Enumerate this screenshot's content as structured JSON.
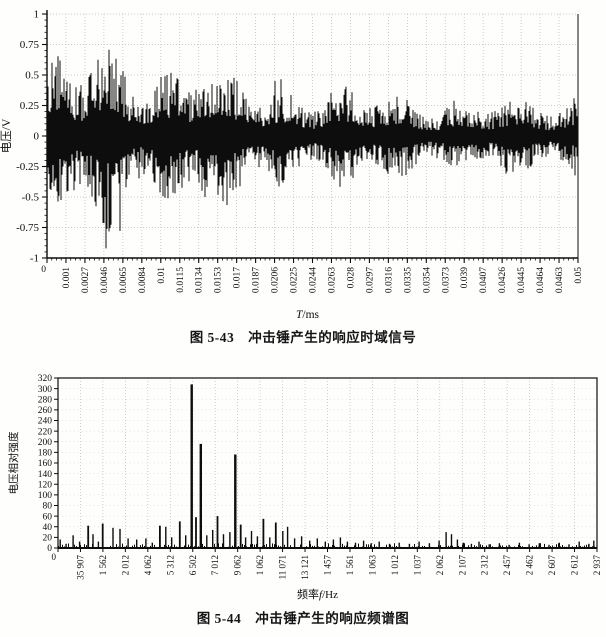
{
  "page_background": "#fefefd",
  "ink_color": "#0d0d0d",
  "grid_color": "#b9b9b9",
  "chart_data": [
    {
      "type": "line",
      "subtype": "noise-waveform",
      "title": "图 5-43　冲击锤产生的响应时域信号",
      "xlabel": "T/ms",
      "xlabel_parts": [
        {
          "t": "T",
          "i": true
        },
        {
          "t": "/ms",
          "i": false
        }
      ],
      "ylabel": "电压/V",
      "ylim": [
        -1,
        1
      ],
      "y_tick_labels": [
        "1",
        "0.75",
        "0.5",
        "0.25",
        "0",
        "-0.25",
        "-0.5",
        "-0.75",
        "-1"
      ],
      "x_tick_labels": [
        "0",
        "0.001",
        "0.0027",
        "0.0046",
        "0.0065",
        "0.0084",
        "0.01",
        "0.0115",
        "0.0134",
        "0.0153",
        "0.017",
        "0.0187",
        "0.0206",
        "0.0225",
        "0.0244",
        "0.0263",
        "0.028",
        "0.0297",
        "0.0316",
        "0.0335",
        "0.0354",
        "0.0373",
        "0.039",
        "0.0407",
        "0.0426",
        "0.0445",
        "0.0464",
        "0.0463",
        "0.05"
      ],
      "grid": true,
      "legend": null,
      "envelope_keypoints": [
        [
          0,
          0.58
        ],
        [
          0.03,
          0.7
        ],
        [
          0.06,
          0.62
        ],
        [
          0.1,
          0.74
        ],
        [
          0.14,
          0.84
        ],
        [
          0.18,
          0.64
        ],
        [
          0.23,
          0.56
        ],
        [
          0.28,
          0.62
        ],
        [
          0.33,
          0.52
        ],
        [
          0.4,
          0.47
        ],
        [
          0.48,
          0.44
        ],
        [
          0.56,
          0.4
        ],
        [
          0.64,
          0.36
        ],
        [
          0.72,
          0.33
        ],
        [
          0.82,
          0.3
        ],
        [
          0.92,
          0.3
        ],
        [
          1,
          0.32
        ]
      ],
      "noise_seed": 987654321
    },
    {
      "type": "bar",
      "subtype": "frequency-spectrum",
      "title": "图 5-44　冲击锤产生的响应频谱图",
      "xlabel": "频率f/Hz",
      "xlabel_parts": [
        {
          "t": "频率",
          "i": false
        },
        {
          "t": "f",
          "i": true
        },
        {
          "t": "/Hz",
          "i": false
        }
      ],
      "ylabel": "电压相对强度",
      "ylim": [
        0,
        320
      ],
      "y_tick_labels": [
        "320",
        "300",
        "280",
        "260",
        "240",
        "220",
        "200",
        "180",
        "160",
        "140",
        "120",
        "100",
        "80",
        "60",
        "40",
        "20",
        "0"
      ],
      "x_tick_labels": [
        "0",
        "35 907",
        "1 562",
        "2 012",
        "4 062",
        "5 312",
        "6 502",
        "7 012",
        "9 062",
        "1 062",
        "11 071",
        "13 121",
        "1 457",
        "1 561",
        "1 063",
        "1 012",
        "1 037",
        "2 062",
        "2 107",
        "2 312",
        "2 457",
        "2 462",
        "2 607",
        "2 612",
        "2 937"
      ],
      "grid": true,
      "legend": null,
      "peaks": [
        [
          0.004,
          16
        ],
        [
          0.015,
          8
        ],
        [
          0.028,
          24
        ],
        [
          0.04,
          12
        ],
        [
          0.056,
          42
        ],
        [
          0.065,
          26
        ],
        [
          0.075,
          12
        ],
        [
          0.083,
          46
        ],
        [
          0.102,
          38
        ],
        [
          0.115,
          36
        ],
        [
          0.13,
          18
        ],
        [
          0.146,
          16
        ],
        [
          0.163,
          18
        ],
        [
          0.175,
          10
        ],
        [
          0.189,
          42
        ],
        [
          0.2,
          40
        ],
        [
          0.211,
          20
        ],
        [
          0.226,
          50
        ],
        [
          0.237,
          24
        ],
        [
          0.248,
          308
        ],
        [
          0.256,
          58
        ],
        [
          0.265,
          196
        ],
        [
          0.276,
          24
        ],
        [
          0.287,
          34
        ],
        [
          0.296,
          60
        ],
        [
          0.307,
          26
        ],
        [
          0.319,
          30
        ],
        [
          0.329,
          176
        ],
        [
          0.339,
          44
        ],
        [
          0.348,
          20
        ],
        [
          0.359,
          32
        ],
        [
          0.37,
          22
        ],
        [
          0.381,
          55
        ],
        [
          0.393,
          20
        ],
        [
          0.404,
          48
        ],
        [
          0.417,
          32
        ],
        [
          0.426,
          40
        ],
        [
          0.439,
          18
        ],
        [
          0.452,
          22
        ],
        [
          0.467,
          14
        ],
        [
          0.481,
          18
        ],
        [
          0.496,
          12
        ],
        [
          0.511,
          16
        ],
        [
          0.524,
          20
        ],
        [
          0.537,
          12
        ],
        [
          0.552,
          10
        ],
        [
          0.567,
          14
        ],
        [
          0.581,
          9
        ],
        [
          0.596,
          12
        ],
        [
          0.615,
          8
        ],
        [
          0.633,
          10
        ],
        [
          0.652,
          8
        ],
        [
          0.67,
          12
        ],
        [
          0.689,
          9
        ],
        [
          0.707,
          14
        ],
        [
          0.72,
          30
        ],
        [
          0.73,
          26
        ],
        [
          0.741,
          16
        ],
        [
          0.752,
          10
        ],
        [
          0.767,
          8
        ],
        [
          0.781,
          12
        ],
        [
          0.8,
          7
        ],
        [
          0.819,
          9
        ],
        [
          0.837,
          6
        ],
        [
          0.856,
          10
        ],
        [
          0.874,
          7
        ],
        [
          0.893,
          9
        ],
        [
          0.911,
          6
        ],
        [
          0.93,
          10
        ],
        [
          0.948,
          7
        ],
        [
          0.967,
          12
        ],
        [
          0.985,
          8
        ],
        [
          0.994,
          14
        ]
      ],
      "noise_seed": 424242
    }
  ]
}
